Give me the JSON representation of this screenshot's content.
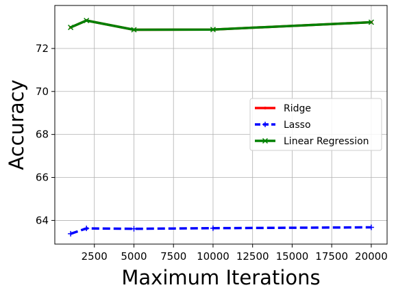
{
  "chart_data": {
    "type": "line",
    "xlabel": "Maximum Iterations",
    "ylabel": "Accuracy",
    "xlim": [
      0,
      21000
    ],
    "ylim": [
      62.9,
      74.0
    ],
    "xticks": [
      2500,
      5000,
      7500,
      10000,
      12500,
      15000,
      17500,
      20000
    ],
    "yticks": [
      64,
      66,
      68,
      70,
      72
    ],
    "xtick_labels": [
      "2500",
      "5000",
      "7500",
      "10000",
      "12500",
      "15000",
      "17500",
      "20000"
    ],
    "ytick_labels": [
      "64",
      "66",
      "68",
      "70",
      "72"
    ],
    "grid": true,
    "legend_position": "center-right",
    "series": [
      {
        "name": "Ridge",
        "color": "#ff0000",
        "style": "solid",
        "marker": "dot",
        "x": [
          1000,
          2000,
          5000,
          10000,
          20000
        ],
        "y": [
          72.98,
          73.3,
          72.87,
          72.88,
          73.22
        ]
      },
      {
        "name": "Lasso",
        "color": "#0000ff",
        "style": "dashed",
        "marker": "plus",
        "x": [
          1000,
          2000,
          5000,
          10000,
          20000
        ],
        "y": [
          63.38,
          63.63,
          63.61,
          63.64,
          63.68
        ]
      },
      {
        "name": "Linear Regression",
        "color": "#008000",
        "style": "solid",
        "marker": "x",
        "x": [
          1000,
          2000,
          5000,
          10000,
          20000
        ],
        "y": [
          72.98,
          73.3,
          72.87,
          72.88,
          73.22
        ]
      }
    ]
  }
}
